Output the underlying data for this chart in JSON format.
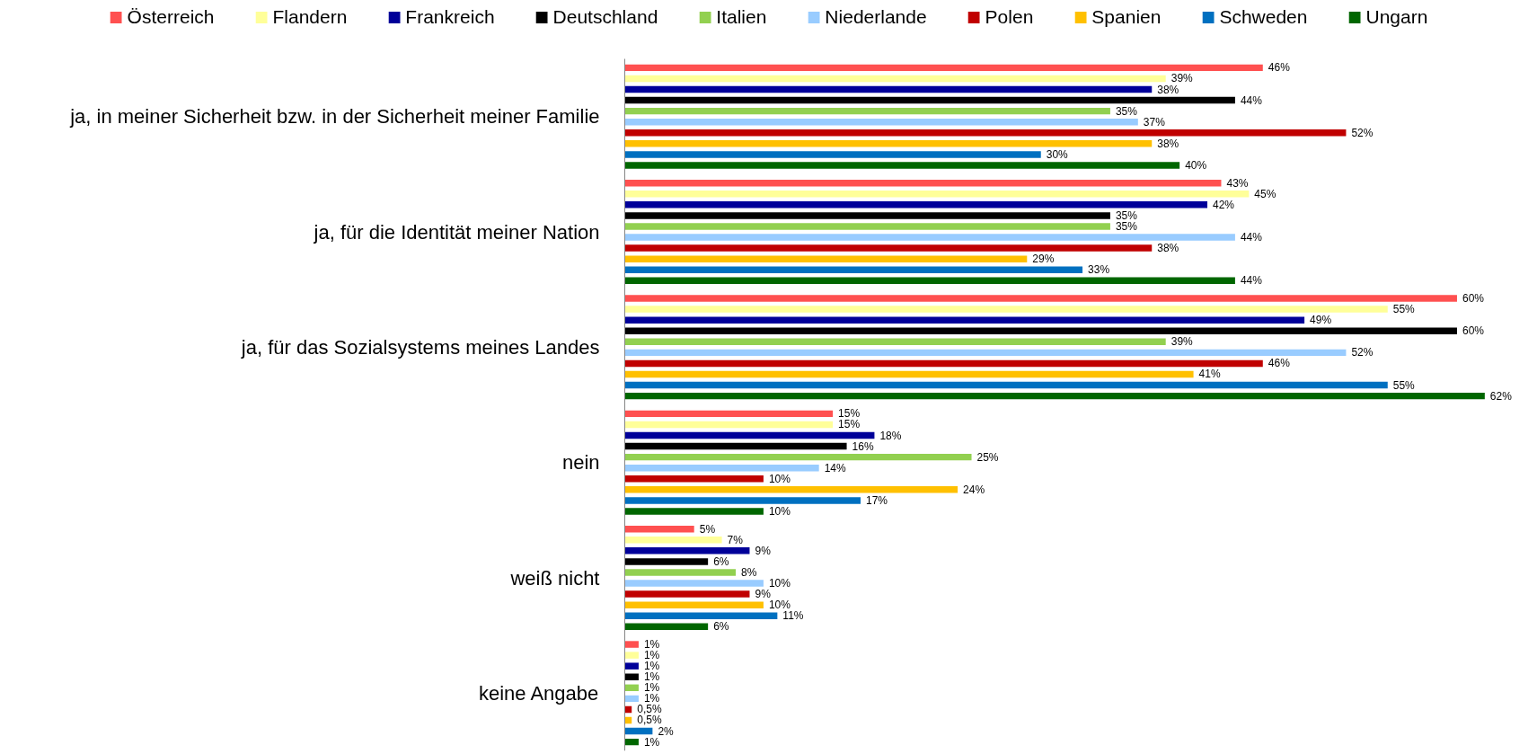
{
  "chart_data": {
    "type": "bar",
    "orientation": "horizontal",
    "legend": "top",
    "grid": false,
    "tick_labels": "y",
    "categories": [
      "ja, in meiner Sicherheit bzw. in der Sicherheit meiner Familie",
      "ja, für die Identität meiner Nation",
      "ja, für das Sozialsystems meines Landes",
      "nein",
      "weiß nicht",
      "keine Angabe"
    ],
    "series": [
      {
        "name": "Österreich",
        "color": "#ff5050",
        "values": [
          46,
          43,
          60,
          15,
          5,
          1
        ],
        "value_labels": [
          "46%",
          "43%",
          "60%",
          "15%",
          "5%",
          "1%"
        ]
      },
      {
        "name": "Flandern",
        "color": "#ffff99",
        "values": [
          39,
          45,
          55,
          15,
          7,
          1
        ],
        "value_labels": [
          "39%",
          "45%",
          "55%",
          "15%",
          "7%",
          "1%"
        ]
      },
      {
        "name": "Frankreich",
        "color": "#000099",
        "values": [
          38,
          42,
          49,
          18,
          9,
          1
        ],
        "value_labels": [
          "38%",
          "42%",
          "49%",
          "18%",
          "9%",
          "1%"
        ]
      },
      {
        "name": "Deutschland",
        "color": "#000000",
        "values": [
          44,
          35,
          60,
          16,
          6,
          1
        ],
        "value_labels": [
          "44%",
          "35%",
          "60%",
          "16%",
          "6%",
          "1%"
        ]
      },
      {
        "name": "Italien",
        "color": "#92d050",
        "values": [
          35,
          35,
          39,
          25,
          8,
          1
        ],
        "value_labels": [
          "35%",
          "35%",
          "39%",
          "25%",
          "8%",
          "1%"
        ]
      },
      {
        "name": "Niederlande",
        "color": "#99ccff",
        "values": [
          37,
          44,
          52,
          14,
          10,
          1
        ],
        "value_labels": [
          "37%",
          "44%",
          "52%",
          "14%",
          "10%",
          "1%"
        ]
      },
      {
        "name": "Polen",
        "color": "#c00000",
        "values": [
          52,
          38,
          46,
          10,
          9,
          0.5
        ],
        "value_labels": [
          "52%",
          "38%",
          "46%",
          "10%",
          "9%",
          "0,5%"
        ]
      },
      {
        "name": "Spanien",
        "color": "#ffc000",
        "values": [
          38,
          29,
          41,
          24,
          10,
          0.5
        ],
        "value_labels": [
          "38%",
          "29%",
          "41%",
          "24%",
          "10%",
          "0,5%"
        ]
      },
      {
        "name": "Schweden",
        "color": "#0070c0",
        "values": [
          30,
          33,
          55,
          17,
          11,
          2
        ],
        "value_labels": [
          "30%",
          "33%",
          "55%",
          "17%",
          "11%",
          "2%"
        ]
      },
      {
        "name": "Ungarn",
        "color": "#006600",
        "values": [
          40,
          44,
          62,
          10,
          6,
          1
        ],
        "value_labels": [
          "40%",
          "44%",
          "62%",
          "10%",
          "6%",
          "1%"
        ]
      }
    ]
  }
}
